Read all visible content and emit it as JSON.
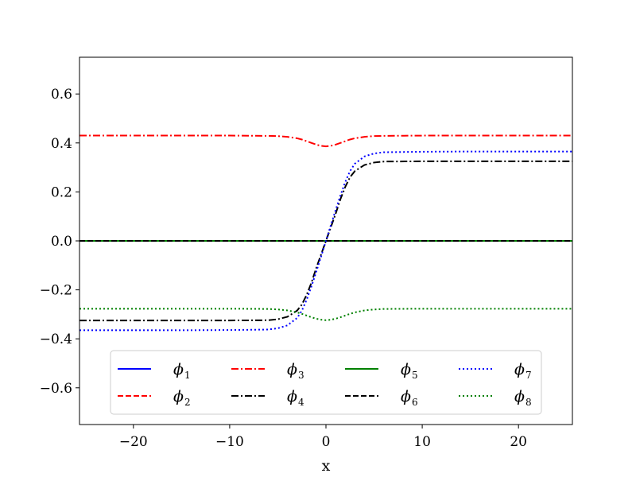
{
  "chart_data": {
    "type": "line",
    "title": "",
    "xlabel": "x",
    "ylabel": "",
    "xlim": [
      -25.6,
      25.6
    ],
    "ylim": [
      -0.75,
      0.75
    ],
    "xticks": [
      -20,
      -10,
      0,
      10,
      20
    ],
    "xtick_labels": [
      "−20",
      "−10",
      "0",
      "10",
      "20"
    ],
    "yticks": [
      -0.6,
      -0.4,
      -0.2,
      0.0,
      0.2,
      0.4,
      0.6
    ],
    "ytick_labels": [
      "−0.6",
      "−0.4",
      "−0.2",
      "0.0",
      "0.2",
      "0.4",
      "0.6"
    ],
    "grid": false,
    "legend": {
      "placement": "lower center",
      "columns": 4
    },
    "x": [
      -25.6,
      -20,
      -15,
      -10,
      -6,
      -5,
      -4,
      -3,
      -2.5,
      -2,
      -1.5,
      -1,
      -0.5,
      0,
      0.5,
      1,
      1.5,
      2,
      2.5,
      3,
      4,
      5,
      6,
      10,
      15,
      20,
      25.6
    ],
    "series": [
      {
        "name": "ϕ",
        "sub": "1",
        "color": "#0000ff",
        "style": "solid",
        "values": [
          0,
          0,
          0,
          0,
          0,
          0,
          0,
          0,
          0,
          0,
          0,
          0,
          0,
          0,
          0,
          0,
          0,
          0,
          0,
          0,
          0,
          0,
          0,
          0,
          0,
          0,
          0
        ]
      },
      {
        "name": "ϕ",
        "sub": "2",
        "color": "#ff0000",
        "style": "dashed",
        "values": [
          0,
          0,
          0,
          0,
          0,
          0,
          0,
          0,
          0,
          0,
          0,
          0,
          0,
          0,
          0,
          0,
          0,
          0,
          0,
          0,
          0,
          0,
          0,
          0,
          0,
          0,
          0
        ]
      },
      {
        "name": "ϕ",
        "sub": "3",
        "color": "#ff0000",
        "style": "dashdot",
        "values": [
          0.43,
          0.43,
          0.43,
          0.43,
          0.429,
          0.428,
          0.425,
          0.419,
          0.414,
          0.407,
          0.4,
          0.393,
          0.388,
          0.386,
          0.388,
          0.393,
          0.4,
          0.407,
          0.414,
          0.419,
          0.425,
          0.428,
          0.429,
          0.43,
          0.43,
          0.43,
          0.43
        ]
      },
      {
        "name": "ϕ",
        "sub": "4",
        "color": "#000000",
        "style": "dashdot",
        "values": [
          -0.325,
          -0.325,
          -0.325,
          -0.325,
          -0.324,
          -0.32,
          -0.31,
          -0.285,
          -0.26,
          -0.22,
          -0.17,
          -0.11,
          -0.055,
          0.0,
          0.055,
          0.11,
          0.17,
          0.22,
          0.26,
          0.285,
          0.31,
          0.32,
          0.324,
          0.325,
          0.325,
          0.325,
          0.325
        ]
      },
      {
        "name": "ϕ",
        "sub": "5",
        "color": "#008000",
        "style": "solid",
        "values": [
          0,
          0,
          0,
          0,
          0,
          0,
          0,
          0,
          0,
          0,
          0,
          0,
          0,
          0,
          0,
          0,
          0,
          0,
          0,
          0,
          0,
          0,
          0,
          0,
          0,
          0,
          0
        ]
      },
      {
        "name": "ϕ",
        "sub": "6",
        "color": "#000000",
        "style": "dashed",
        "values": [
          0,
          0,
          0,
          0,
          0,
          0,
          0,
          0,
          0,
          0,
          0,
          0,
          0,
          0,
          0,
          0,
          0,
          0,
          0,
          0,
          0,
          0,
          0,
          0,
          0,
          0,
          0
        ]
      },
      {
        "name": "ϕ",
        "sub": "7",
        "color": "#0000ff",
        "style": "dotted",
        "values": [
          -0.365,
          -0.365,
          -0.365,
          -0.364,
          -0.362,
          -0.357,
          -0.345,
          -0.315,
          -0.285,
          -0.24,
          -0.185,
          -0.125,
          -0.063,
          0.0,
          0.063,
          0.125,
          0.185,
          0.24,
          0.285,
          0.315,
          0.345,
          0.357,
          0.362,
          0.364,
          0.365,
          0.365,
          0.365
        ]
      },
      {
        "name": "ϕ",
        "sub": "8",
        "color": "#008000",
        "style": "dotted",
        "values": [
          -0.277,
          -0.277,
          -0.277,
          -0.277,
          -0.278,
          -0.28,
          -0.284,
          -0.292,
          -0.298,
          -0.305,
          -0.312,
          -0.318,
          -0.322,
          -0.324,
          -0.322,
          -0.318,
          -0.312,
          -0.305,
          -0.298,
          -0.292,
          -0.284,
          -0.28,
          -0.278,
          -0.277,
          -0.277,
          -0.277,
          -0.277
        ]
      }
    ]
  }
}
